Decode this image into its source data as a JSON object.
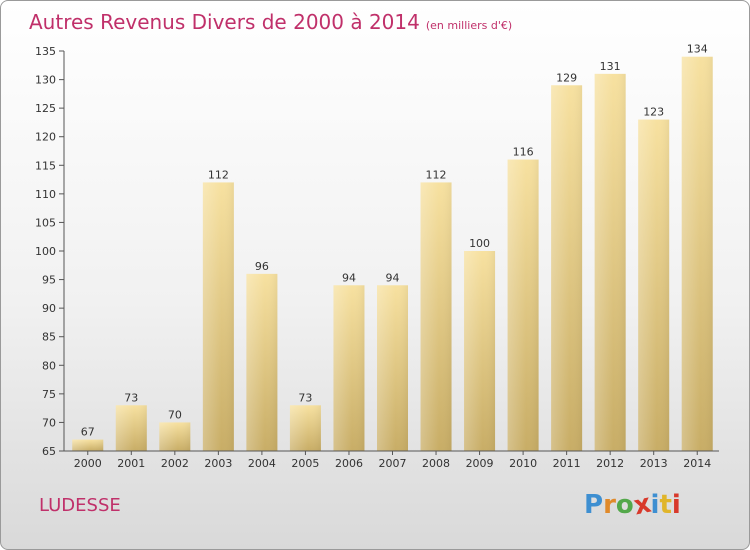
{
  "title": "Autres Revenus Divers de 2000 à 2014",
  "unit": "(en milliers d'€)",
  "place": "LUDESSE",
  "logo": {
    "text": "Proxiti",
    "letter_colors": [
      "#3e8fd1",
      "#e08a2a",
      "#53a84a",
      "#d8392b",
      "#3e8fd1",
      "#e0b52a",
      "#d8392b"
    ]
  },
  "chart_data": {
    "type": "bar",
    "categories": [
      "2000",
      "2001",
      "2002",
      "2003",
      "2004",
      "2005",
      "2006",
      "2007",
      "2008",
      "2009",
      "2010",
      "2011",
      "2012",
      "2013",
      "2014"
    ],
    "values": [
      67,
      73,
      70,
      112,
      96,
      73,
      94,
      94,
      112,
      100,
      116,
      129,
      131,
      123,
      134
    ],
    "ylim": [
      65,
      135
    ],
    "yticks": [
      65,
      70,
      75,
      80,
      85,
      90,
      95,
      100,
      105,
      110,
      115,
      120,
      125,
      130,
      135
    ],
    "grid": false,
    "bar_color_light": "#f7e1a0",
    "bar_color_dark": "#c8ad66"
  }
}
